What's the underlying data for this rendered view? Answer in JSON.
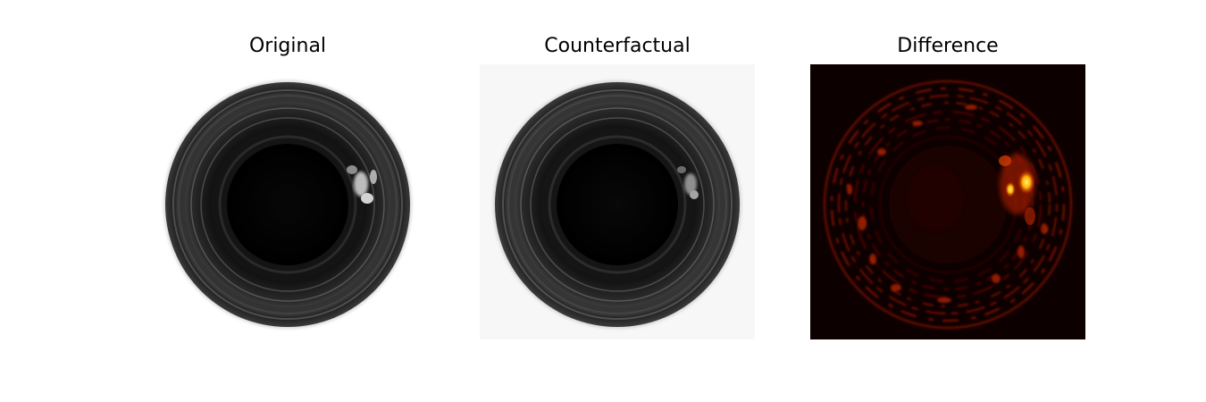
{
  "figure": {
    "panels": [
      {
        "title": "Original",
        "content": "grayscale bottle top view"
      },
      {
        "title": "Counterfactual",
        "content": "grayscale bottle top view, defect reduced"
      },
      {
        "title": "Difference",
        "content": "hot colormap difference heatmap"
      }
    ],
    "colors": {
      "background": "#ffffff",
      "original_background": "#ffffff",
      "counterfactual_background": "#f7f7f7",
      "difference_background": "#0d0000",
      "difference_hot": "#ffe066"
    }
  }
}
